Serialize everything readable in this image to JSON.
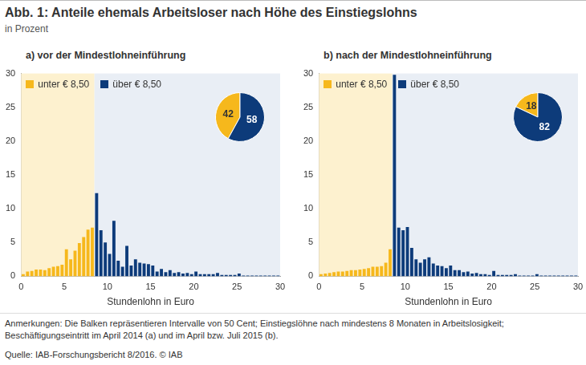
{
  "title": "Abb. 1: Anteile ehemals Arbeitsloser nach Höhe des Einstiegslohns",
  "subtitle": "in Prozent",
  "notes": "Anmerkungen: Die Balken repräsentieren Intervalle von 50 Cent; Einstiegslöhne nach mindestens 8 Monaten in Arbeitslosigkeit; Beschäftigungseintritt im April 2014 (a) und im April bzw. Juli 2015 (b).",
  "source": "Quelle: IAB-Forschungsbericht 8/2016. © IAB",
  "chart_data": [
    {
      "type": "bar",
      "title": "a) vor der Mindestlohneinführung",
      "x_label": "Stundenlohn in Euro",
      "bins": [
        0,
        0.5,
        1,
        1.5,
        2,
        2.5,
        3,
        3.5,
        4,
        4.5,
        5,
        5.5,
        6,
        6.5,
        7,
        7.5,
        8,
        8.5,
        9,
        9.5,
        10,
        10.5,
        11,
        11.5,
        12,
        12.5,
        13,
        13.5,
        14,
        14.5,
        15,
        15.5,
        16,
        16.5,
        17,
        17.5,
        18,
        18.5,
        19,
        19.5,
        20,
        20.5,
        21,
        21.5,
        22,
        22.5,
        23,
        23.5,
        24,
        24.5,
        25,
        25.5,
        26,
        26.5,
        27,
        27.5,
        28,
        28.5,
        29,
        29.5,
        30
      ],
      "series": [
        {
          "name": "unter € 8,50",
          "color": "#f6b81c",
          "values": [
            0.3,
            0.7,
            0.8,
            1,
            1,
            0.9,
            1.2,
            1.4,
            1.5,
            1.7,
            4,
            2.5,
            3.8,
            4.9,
            5.8,
            6.9,
            7.2,
            null,
            null,
            null,
            null,
            null,
            null,
            null,
            null,
            null,
            null,
            null,
            null,
            null,
            null,
            null,
            null,
            null,
            null,
            null,
            null,
            null,
            null,
            null,
            null,
            null,
            null,
            null,
            null,
            null,
            null,
            null,
            null,
            null,
            null,
            null,
            null,
            null,
            null,
            null,
            null,
            null,
            null,
            null
          ]
        },
        {
          "name": "über € 8,50",
          "color": "#0d3b7a",
          "values": [
            null,
            null,
            null,
            null,
            null,
            null,
            null,
            null,
            null,
            null,
            null,
            null,
            null,
            null,
            null,
            null,
            null,
            12.3,
            6.8,
            5,
            3.3,
            8.2,
            2.3,
            1.4,
            4.5,
            1.6,
            2.5,
            2,
            1.9,
            1.8,
            1.6,
            0.7,
            1.1,
            0.6,
            0.9,
            0.5,
            0.6,
            0.4,
            0.5,
            0.3,
            0.7,
            0.3,
            0.3,
            0.3,
            0.3,
            0.5,
            0.2,
            0.2,
            0.2,
            0.2,
            0.4,
            0.1,
            0.1,
            0.1,
            0.1,
            0.1,
            0.1,
            0.1,
            0.1,
            0.1
          ]
        }
      ],
      "threshold": 8.5,
      "xlim": [
        0,
        30
      ],
      "xticks": [
        0,
        5,
        10,
        15,
        20,
        25,
        30
      ],
      "ylim": [
        0,
        30
      ],
      "yticks": [
        0,
        5,
        10,
        15,
        20,
        25,
        30
      ],
      "grid": false,
      "legend": "upper left",
      "pie": {
        "type": "pie",
        "values": [
          42,
          58
        ],
        "colors": [
          "#f6b81c",
          "#0d3b7a"
        ],
        "data_labels": true
      }
    },
    {
      "type": "bar",
      "title": "b) nach der Mindestlohneinführung",
      "x_label": "Stundenlohn in Euro",
      "bins": [
        0,
        0.5,
        1,
        1.5,
        2,
        2.5,
        3,
        3.5,
        4,
        4.5,
        5,
        5.5,
        6,
        6.5,
        7,
        7.5,
        8,
        8.5,
        9,
        9.5,
        10,
        10.5,
        11,
        11.5,
        12,
        12.5,
        13,
        13.5,
        14,
        14.5,
        15,
        15.5,
        16,
        16.5,
        17,
        17.5,
        18,
        18.5,
        19,
        19.5,
        20,
        20.5,
        21,
        21.5,
        22,
        22.5,
        23,
        23.5,
        24,
        24.5,
        25,
        25.5,
        26,
        26.5,
        27,
        27.5,
        28,
        28.5,
        29,
        29.5,
        30
      ],
      "series": [
        {
          "name": "unter € 8,50",
          "color": "#f6b81c",
          "values": [
            0.3,
            0.4,
            0.5,
            0.6,
            0.7,
            0.7,
            0.8,
            0.9,
            0.9,
            1,
            1.1,
            1.2,
            1.4,
            1.4,
            1.5,
            2,
            4,
            null,
            null,
            null,
            null,
            null,
            null,
            null,
            null,
            null,
            null,
            null,
            null,
            null,
            null,
            null,
            null,
            null,
            null,
            null,
            null,
            null,
            null,
            null,
            null,
            null,
            null,
            null,
            null,
            null,
            null,
            null,
            null,
            null,
            null,
            null,
            null,
            null,
            null,
            null,
            null,
            null,
            null,
            null
          ]
        },
        {
          "name": "über € 8,50",
          "color": "#0d3b7a",
          "values": [
            null,
            null,
            null,
            null,
            null,
            null,
            null,
            null,
            null,
            null,
            null,
            null,
            null,
            null,
            null,
            null,
            null,
            29.8,
            7.2,
            6.8,
            7.3,
            4.2,
            2.5,
            2,
            2.5,
            2.8,
            1.9,
            1.6,
            1.5,
            1.2,
            1.6,
            0.9,
            0.9,
            0.6,
            0.7,
            0.4,
            0.5,
            0.3,
            0.3,
            0.2,
            0.8,
            0.2,
            0.2,
            0.2,
            0.2,
            0.3,
            0.1,
            0.1,
            0.1,
            0.1,
            0.3,
            0.1,
            0.1,
            0.1,
            0.1,
            0.1,
            0.1,
            0.1,
            0.1,
            0.1
          ]
        }
      ],
      "threshold": 8.5,
      "xlim": [
        0,
        30
      ],
      "xticks": [
        0,
        5,
        10,
        15,
        20,
        25,
        30
      ],
      "ylim": [
        0,
        30
      ],
      "yticks": [
        0,
        5,
        10,
        15,
        20,
        25,
        30
      ],
      "grid": false,
      "legend": "upper left",
      "pie": {
        "type": "pie",
        "values": [
          18,
          82
        ],
        "colors": [
          "#f6b81c",
          "#0d3b7a"
        ],
        "data_labels": true
      }
    }
  ]
}
